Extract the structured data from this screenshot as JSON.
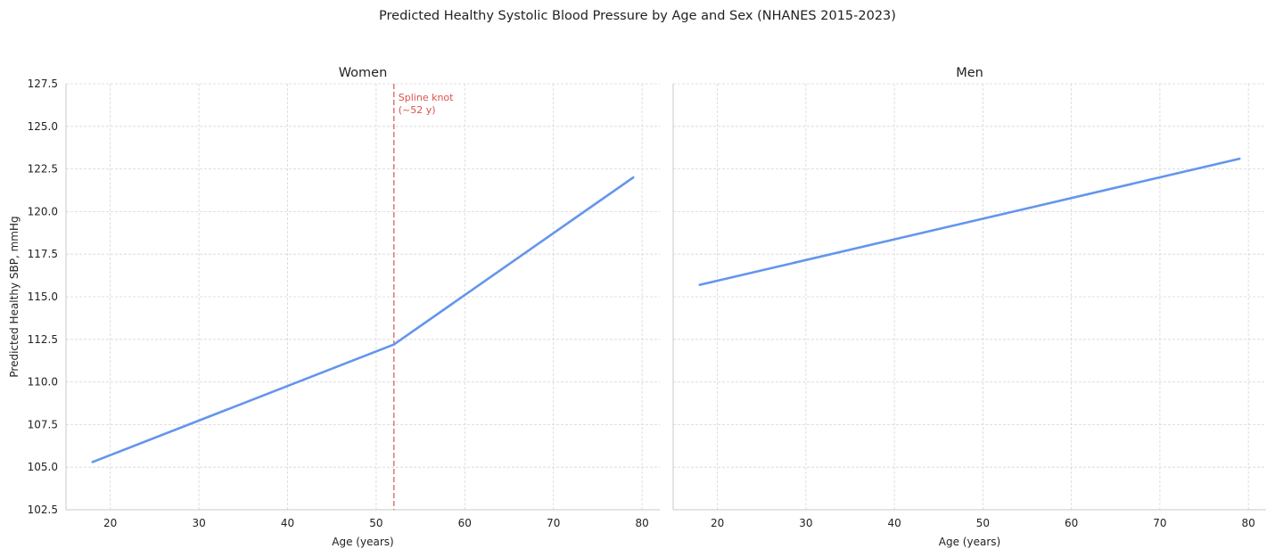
{
  "title": "Predicted Healthy Systolic Blood Pressure by Age and Sex (NHANES 2015-2023)",
  "colors": {
    "line": "#6495ed",
    "knot": "#d9534f",
    "grid": "#d6d6d6",
    "spine": "#c8c8c8",
    "text": "#222222"
  },
  "chart_data": [
    {
      "type": "line",
      "title": "Women",
      "xlabel": "Age (years)",
      "ylabel": "Predicted Healthy SBP, mmHg",
      "xlim": [
        15,
        82
      ],
      "ylim": [
        102.5,
        127.5
      ],
      "xticks": [
        20,
        30,
        40,
        50,
        60,
        70,
        80
      ],
      "yticks": [
        102.5,
        105.0,
        107.5,
        110.0,
        112.5,
        115.0,
        117.5,
        120.0,
        122.5,
        125.0,
        127.5
      ],
      "grid": true,
      "series": [
        {
          "x": [
            18,
            52,
            79
          ],
          "y": [
            105.3,
            112.2,
            122.0
          ]
        }
      ],
      "knot": {
        "x": 52,
        "label_line1": "Spline knot",
        "label_line2": "(~52 y)"
      }
    },
    {
      "type": "line",
      "title": "Men",
      "xlabel": "Age (years)",
      "ylabel": "",
      "xlim": [
        15,
        82
      ],
      "ylim": [
        102.5,
        127.5
      ],
      "xticks": [
        20,
        30,
        40,
        50,
        60,
        70,
        80
      ],
      "yticks": [
        102.5,
        105.0,
        107.5,
        110.0,
        112.5,
        115.0,
        117.5,
        120.0,
        122.5,
        125.0,
        127.5
      ],
      "grid": true,
      "shared_y": true,
      "series": [
        {
          "x": [
            18,
            79
          ],
          "y": [
            115.7,
            123.1
          ]
        }
      ]
    }
  ]
}
